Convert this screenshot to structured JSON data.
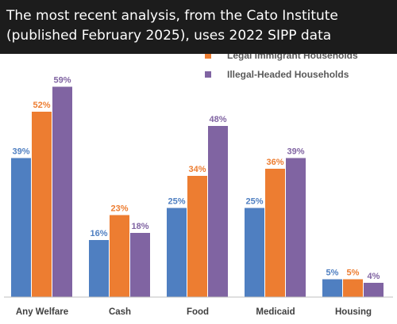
{
  "caption": {
    "line1": "The most recent analysis, from the Cato Institute",
    "line2": "(published February 2025), uses 2022 SIPP data"
  },
  "chart_data": {
    "type": "bar",
    "categories": [
      "Any Welfare",
      "Cash",
      "Food",
      "Medicaid",
      "Housing"
    ],
    "series": [
      {
        "name": "",
        "color": "#4F7FC1",
        "values": [
          39,
          16,
          25,
          25,
          5
        ]
      },
      {
        "name": "Legal Immigrant Households",
        "color": "#ED7D31",
        "values": [
          52,
          23,
          34,
          36,
          5
        ]
      },
      {
        "name": "Illegal-Headed Households",
        "color": "#8064A2",
        "values": [
          59,
          18,
          48,
          39,
          4
        ]
      }
    ],
    "value_suffix": "%",
    "ylim": [
      0,
      60
    ],
    "legend_position": "top-right",
    "grid": false
  }
}
